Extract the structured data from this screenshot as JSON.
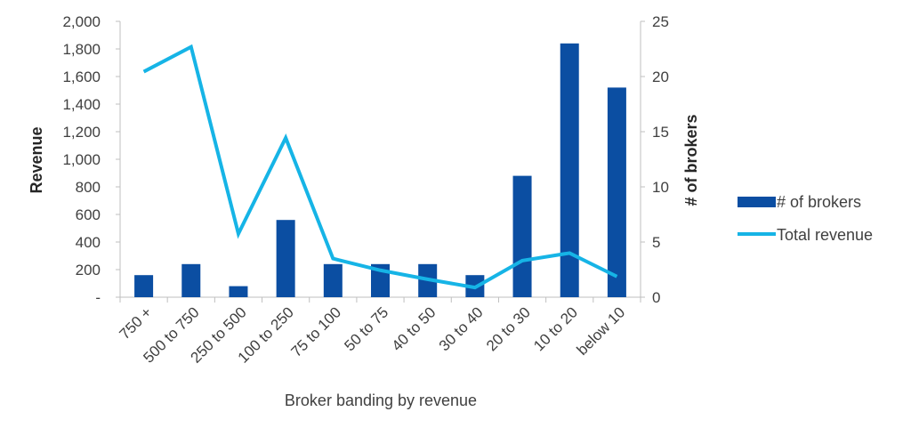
{
  "chart_data": {
    "type": "bar+line",
    "categories": [
      "750 +",
      "500 to 750",
      "250 to 500",
      "100 to 250",
      "75 to 100",
      "50 to 75",
      "40 to 50",
      "30 to 40",
      "20 to 30",
      "10 to 20",
      "below 10"
    ],
    "series": [
      {
        "name": "# of brokers",
        "type": "bar",
        "axis": "right",
        "color": "#0b4ea2",
        "values": [
          2,
          3,
          1,
          7,
          3,
          3,
          3,
          2,
          11,
          23,
          19
        ]
      },
      {
        "name": "Total revenue",
        "type": "line",
        "axis": "left",
        "color": "#16b4e6",
        "values": [
          1635,
          1815,
          460,
          1155,
          280,
          195,
          130,
          70,
          265,
          320,
          150
        ]
      }
    ],
    "xlabel": "Broker banding by revenue",
    "ylabel": "Revenue",
    "y2label": "# of brokers",
    "ylim": [
      0,
      2000
    ],
    "y2lim": [
      0,
      25
    ],
    "yticks": [
      "-",
      "200",
      "400",
      "600",
      "800",
      "1,000",
      "1,200",
      "1,400",
      "1,600",
      "1,800",
      "2,000"
    ],
    "y2ticks": [
      "0",
      "5",
      "10",
      "15",
      "20",
      "25"
    ],
    "legend_position": "right",
    "grid": false
  }
}
